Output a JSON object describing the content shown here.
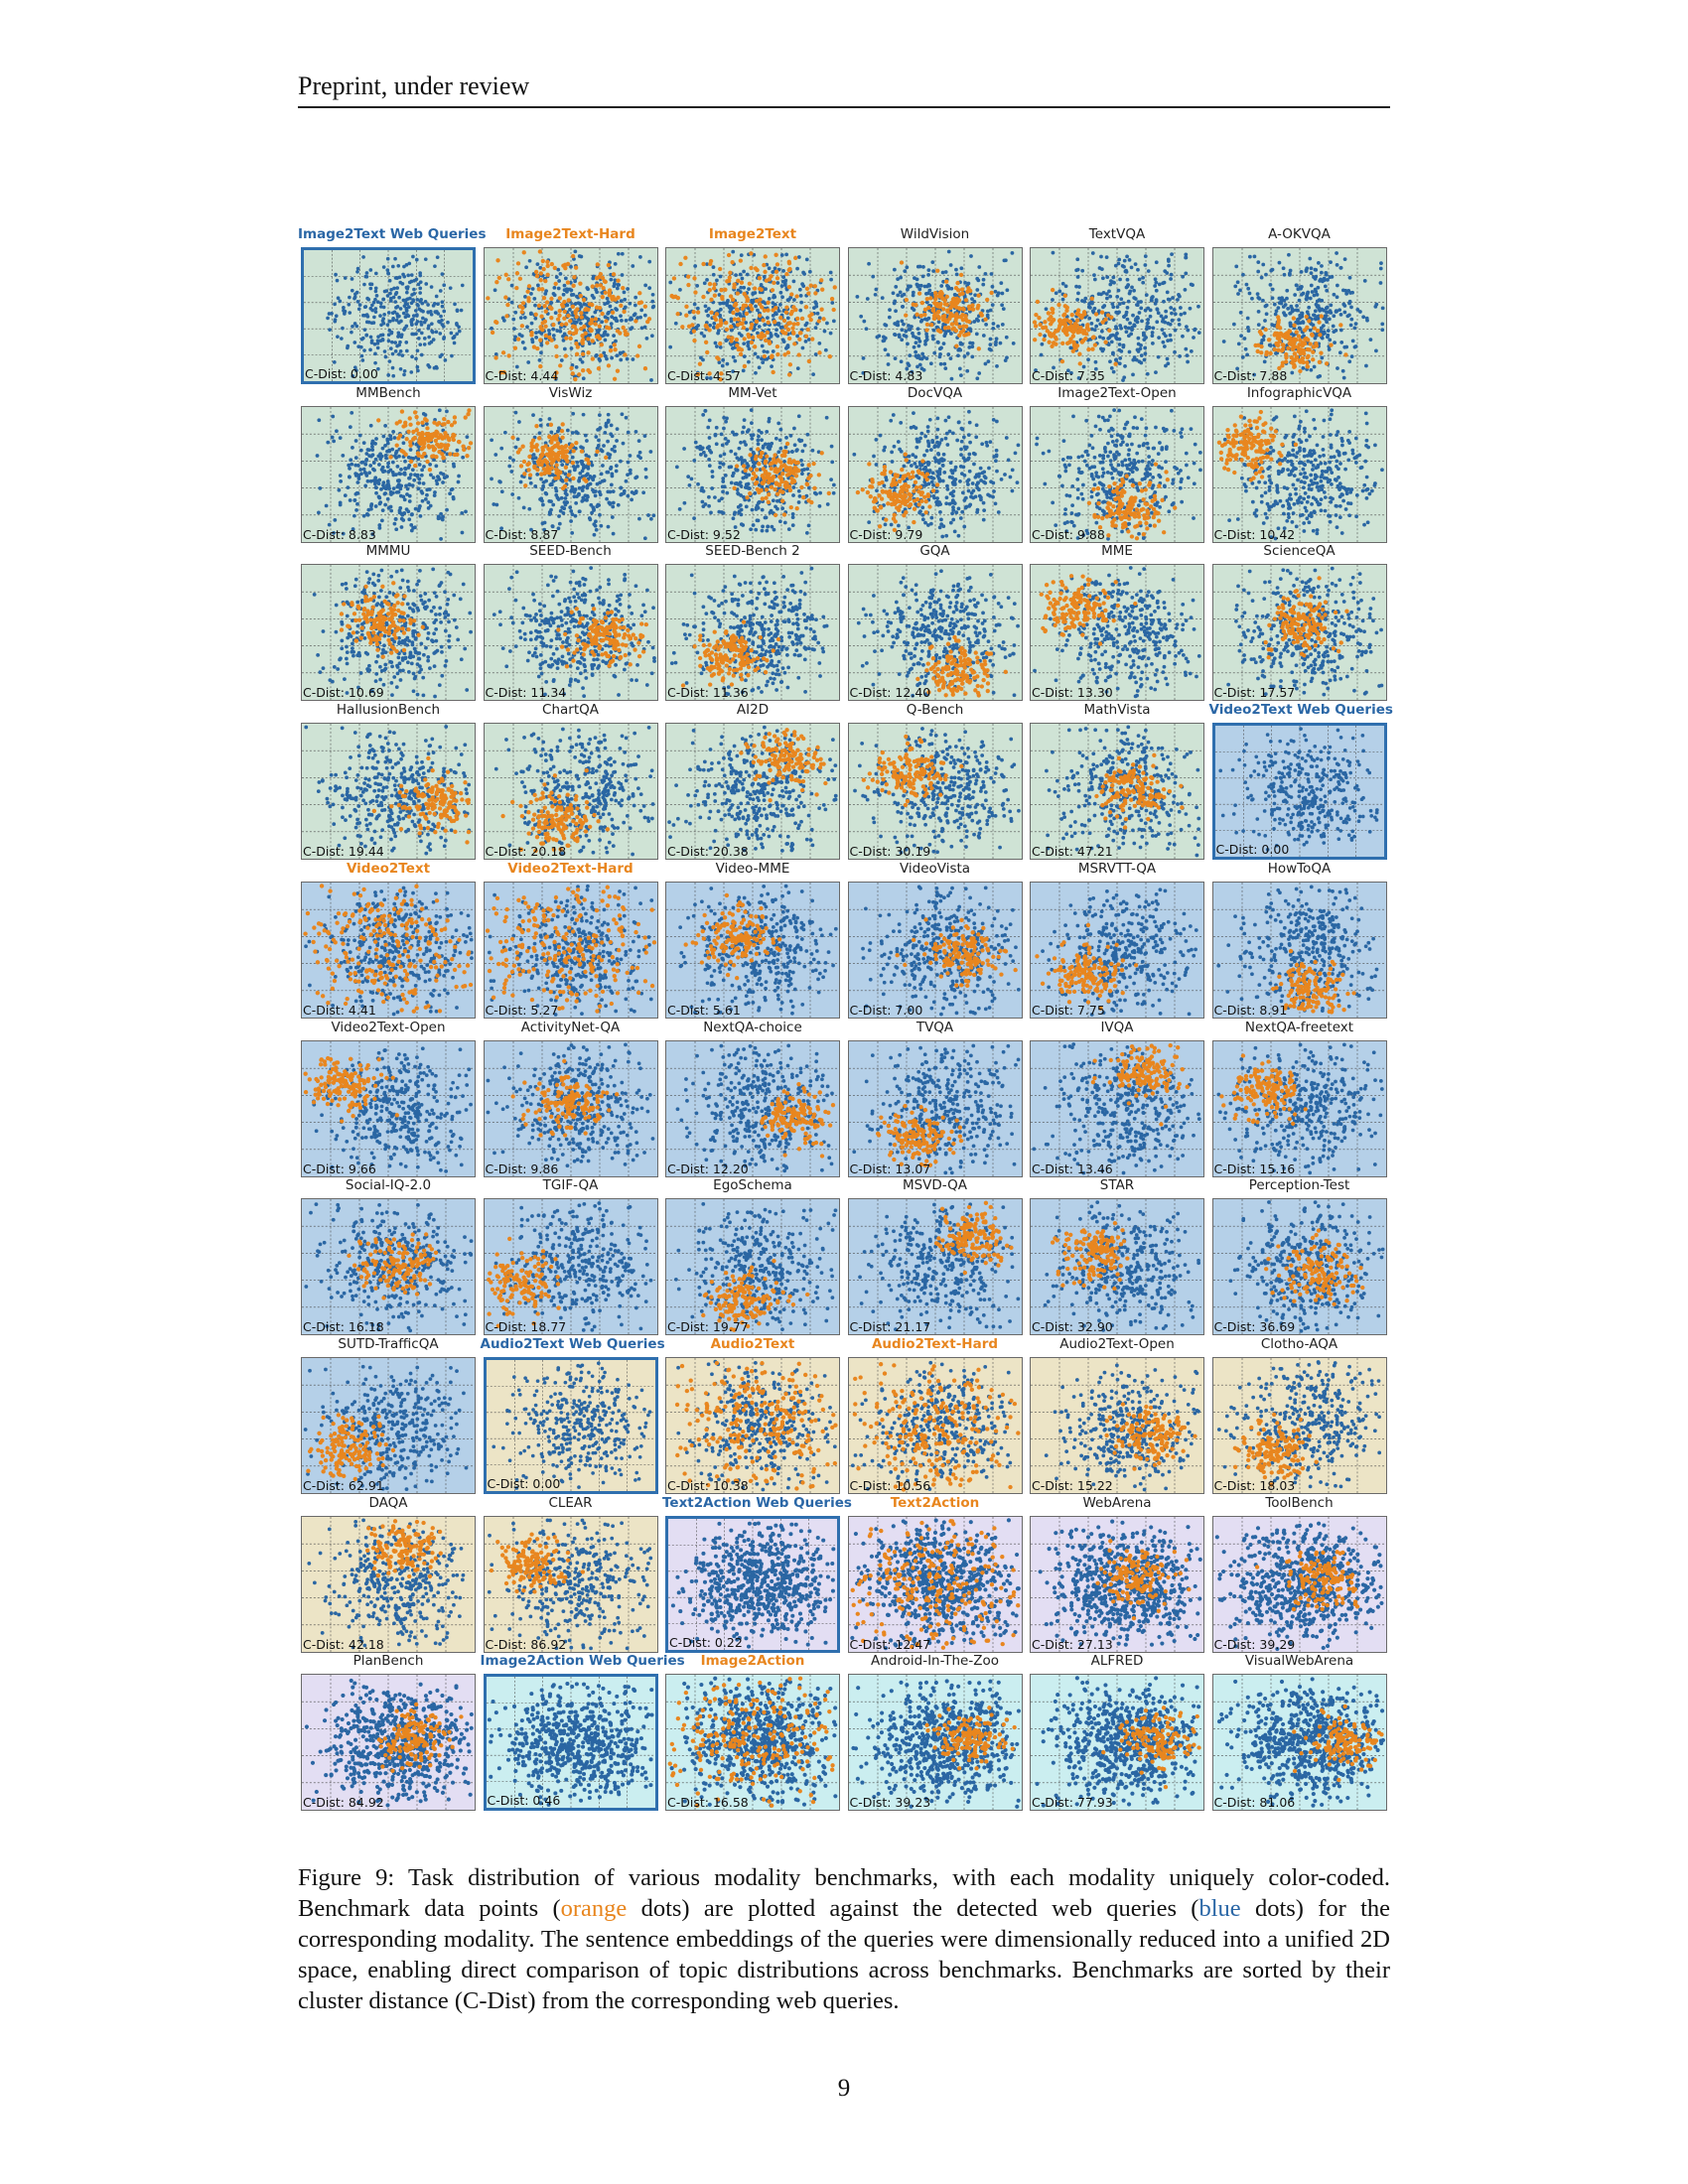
{
  "header": {
    "text": "Preprint, under review"
  },
  "colors": {
    "image_bg": "#cfe3d5",
    "video_bg": "#b5d0e8",
    "audio_bg": "#ece4c6",
    "text_bg": "#e3def3",
    "image_action_bg": "#cbeef0",
    "web_dots": "#2a66a3",
    "bench_dots": "#e8861f",
    "web_title": "#2b67a6",
    "bench_title": "#e8861f"
  },
  "panels": [
    {
      "name": "Image2Text Web Queries",
      "cdist": "C-Dist: 0.00",
      "group": "image",
      "kind": "web"
    },
    {
      "name": "Image2Text-Hard",
      "cdist": "C-Dist: 4.44",
      "group": "image",
      "kind": "bench"
    },
    {
      "name": "Image2Text",
      "cdist": "C-Dist: 4.57",
      "group": "image",
      "kind": "bench"
    },
    {
      "name": "WildVision",
      "cdist": "C-Dist: 4.83",
      "group": "image",
      "kind": "normal"
    },
    {
      "name": "TextVQA",
      "cdist": "C-Dist: 7.35",
      "group": "image",
      "kind": "normal"
    },
    {
      "name": "A-OKVQA",
      "cdist": "C-Dist: 7.88",
      "group": "image",
      "kind": "normal"
    },
    {
      "name": "MMBench",
      "cdist": "C-Dist: 8.83",
      "group": "image",
      "kind": "normal"
    },
    {
      "name": "VisWiz",
      "cdist": "C-Dist: 8.87",
      "group": "image",
      "kind": "normal"
    },
    {
      "name": "MM-Vet",
      "cdist": "C-Dist: 9.52",
      "group": "image",
      "kind": "normal"
    },
    {
      "name": "DocVQA",
      "cdist": "C-Dist: 9.79",
      "group": "image",
      "kind": "normal"
    },
    {
      "name": "Image2Text-Open",
      "cdist": "C-Dist: 9.88",
      "group": "image",
      "kind": "normal"
    },
    {
      "name": "InfographicVQA",
      "cdist": "C-Dist: 10.42",
      "group": "image",
      "kind": "normal"
    },
    {
      "name": "MMMU",
      "cdist": "C-Dist: 10.69",
      "group": "image",
      "kind": "normal"
    },
    {
      "name": "SEED-Bench",
      "cdist": "C-Dist: 11.34",
      "group": "image",
      "kind": "normal"
    },
    {
      "name": "SEED-Bench 2",
      "cdist": "C-Dist: 11.36",
      "group": "image",
      "kind": "normal"
    },
    {
      "name": "GQA",
      "cdist": "C-Dist: 12.40",
      "group": "image",
      "kind": "normal"
    },
    {
      "name": "MME",
      "cdist": "C-Dist: 13.30",
      "group": "image",
      "kind": "normal"
    },
    {
      "name": "ScienceQA",
      "cdist": "C-Dist: 17.57",
      "group": "image",
      "kind": "normal"
    },
    {
      "name": "HallusionBench",
      "cdist": "C-Dist: 19.44",
      "group": "image",
      "kind": "normal"
    },
    {
      "name": "ChartQA",
      "cdist": "C-Dist: 20.18",
      "group": "image",
      "kind": "normal"
    },
    {
      "name": "AI2D",
      "cdist": "C-Dist: 20.38",
      "group": "image",
      "kind": "normal"
    },
    {
      "name": "Q-Bench",
      "cdist": "C-Dist: 30.19",
      "group": "image",
      "kind": "normal"
    },
    {
      "name": "MathVista",
      "cdist": "C-Dist: 47.21",
      "group": "image",
      "kind": "normal"
    },
    {
      "name": "Video2Text Web Queries",
      "cdist": "C-Dist: 0.00",
      "group": "video",
      "kind": "web"
    },
    {
      "name": "Video2Text",
      "cdist": "C-Dist: 4.41",
      "group": "video",
      "kind": "bench"
    },
    {
      "name": "Video2Text-Hard",
      "cdist": "C-Dist: 5.27",
      "group": "video",
      "kind": "bench"
    },
    {
      "name": "Video-MME",
      "cdist": "C-Dist: 5.61",
      "group": "video",
      "kind": "normal"
    },
    {
      "name": "VideoVista",
      "cdist": "C-Dist: 7.00",
      "group": "video",
      "kind": "normal"
    },
    {
      "name": "MSRVTT-QA",
      "cdist": "C-Dist: 7.75",
      "group": "video",
      "kind": "normal"
    },
    {
      "name": "HowToQA",
      "cdist": "C-Dist: 8.91",
      "group": "video",
      "kind": "normal"
    },
    {
      "name": "Video2Text-Open",
      "cdist": "C-Dist: 9.66",
      "group": "video",
      "kind": "normal"
    },
    {
      "name": "ActivityNet-QA",
      "cdist": "C-Dist: 9.86",
      "group": "video",
      "kind": "normal"
    },
    {
      "name": "NextQA-choice",
      "cdist": "C-Dist: 12.20",
      "group": "video",
      "kind": "normal"
    },
    {
      "name": "TVQA",
      "cdist": "C-Dist: 13.07",
      "group": "video",
      "kind": "normal"
    },
    {
      "name": "IVQA",
      "cdist": "C-Dist: 13.46",
      "group": "video",
      "kind": "normal"
    },
    {
      "name": "NextQA-freetext",
      "cdist": "C-Dist: 15.16",
      "group": "video",
      "kind": "normal"
    },
    {
      "name": "Social-IQ-2.0",
      "cdist": "C-Dist: 16.18",
      "group": "video",
      "kind": "normal"
    },
    {
      "name": "TGIF-QA",
      "cdist": "C-Dist: 18.77",
      "group": "video",
      "kind": "normal"
    },
    {
      "name": "EgoSchema",
      "cdist": "C-Dist: 19.77",
      "group": "video",
      "kind": "normal"
    },
    {
      "name": "MSVD-QA",
      "cdist": "C-Dist: 21.17",
      "group": "video",
      "kind": "normal"
    },
    {
      "name": "STAR",
      "cdist": "C-Dist: 32.90",
      "group": "video",
      "kind": "normal"
    },
    {
      "name": "Perception-Test",
      "cdist": "C-Dist: 36.69",
      "group": "video",
      "kind": "normal"
    },
    {
      "name": "SUTD-TrafficQA",
      "cdist": "C-Dist: 62.91",
      "group": "video",
      "kind": "normal"
    },
    {
      "name": "Audio2Text Web Queries",
      "cdist": "C-Dist: 0.00",
      "group": "audio",
      "kind": "web"
    },
    {
      "name": "Audio2Text",
      "cdist": "C-Dist: 10.38",
      "group": "audio",
      "kind": "bench"
    },
    {
      "name": "Audio2Text-Hard",
      "cdist": "C-Dist: 10.56",
      "group": "audio",
      "kind": "bench"
    },
    {
      "name": "Audio2Text-Open",
      "cdist": "C-Dist: 15.22",
      "group": "audio",
      "kind": "normal"
    },
    {
      "name": "Clotho-AQA",
      "cdist": "C-Dist: 18.03",
      "group": "audio",
      "kind": "normal"
    },
    {
      "name": "DAQA",
      "cdist": "C-Dist: 42.18",
      "group": "audio",
      "kind": "normal"
    },
    {
      "name": "CLEAR",
      "cdist": "C-Dist: 86.92",
      "group": "audio",
      "kind": "normal"
    },
    {
      "name": "Text2Action Web Queries",
      "cdist": "C-Dist: 0.22",
      "group": "text",
      "kind": "web"
    },
    {
      "name": "Text2Action",
      "cdist": "C-Dist: 12.47",
      "group": "text",
      "kind": "bench"
    },
    {
      "name": "WebArena",
      "cdist": "C-Dist: 27.13",
      "group": "text",
      "kind": "normal"
    },
    {
      "name": "ToolBench",
      "cdist": "C-Dist: 39.29",
      "group": "text",
      "kind": "normal"
    },
    {
      "name": "PlanBench",
      "cdist": "C-Dist: 84.92",
      "group": "text",
      "kind": "normal"
    },
    {
      "name": "Image2Action Web Queries",
      "cdist": "C-Dist: 0.46",
      "group": "image_action",
      "kind": "web"
    },
    {
      "name": "Image2Action",
      "cdist": "C-Dist: 16.58",
      "group": "image_action",
      "kind": "bench"
    },
    {
      "name": "Android-In-The-Zoo",
      "cdist": "C-Dist: 39.23",
      "group": "image_action",
      "kind": "normal"
    },
    {
      "name": "ALFRED",
      "cdist": "C-Dist: 77.93",
      "group": "image_action",
      "kind": "normal"
    },
    {
      "name": "VisualWebArena",
      "cdist": "C-Dist: 81.06",
      "group": "image_action",
      "kind": "normal"
    }
  ],
  "caption": {
    "part1": "Figure 9: Task distribution of various modality benchmarks, with each modality uniquely color-coded. Benchmark data points (",
    "orange_word": "orange",
    "part2": " dots) are plotted against the detected web queries (",
    "blue_word": "blue",
    "part3": " dots) for the corresponding modality. The sentence embeddings of the queries were dimensionally reduced into a unified 2D space, enabling direct comparison of topic distributions across benchmarks. Benchmarks are sorted by their cluster distance (C-Dist) from the corresponding web queries."
  },
  "page_number": "9"
}
